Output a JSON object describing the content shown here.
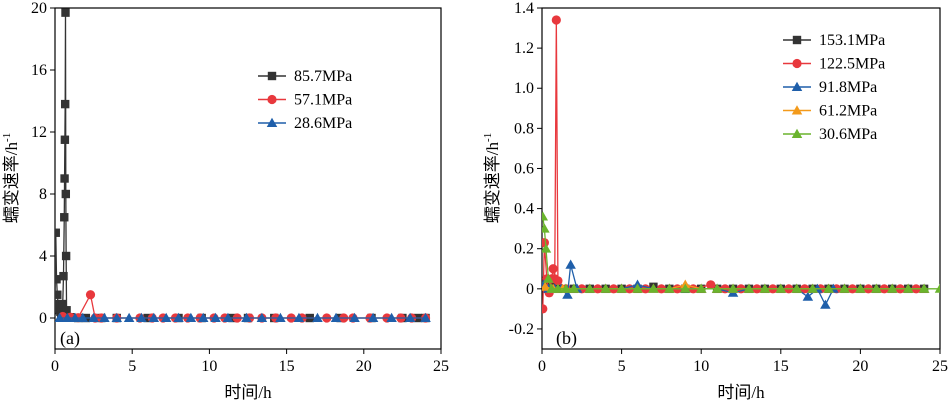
{
  "chart_data": [
    {
      "type": "line",
      "panel_label": "(a)",
      "xlabel": "时间/h",
      "ylabel_main": "蠕变速率/h",
      "ylabel_sup": "-1",
      "xlim": [
        0,
        25
      ],
      "ylim": [
        -2,
        20
      ],
      "xticks": [
        "0",
        "5",
        "10",
        "15",
        "20",
        "25"
      ],
      "yticks": [
        "0",
        "4",
        "8",
        "12",
        "16",
        "20"
      ],
      "legend_position": "top-right",
      "series": [
        {
          "name": "85.7MPa",
          "color": "#333333",
          "marker": "square",
          "points": [
            [
              0.0,
              0.7
            ],
            [
              0.05,
              5.5
            ],
            [
              0.1,
              2.5
            ],
            [
              0.15,
              1.5
            ],
            [
              0.2,
              0.9
            ],
            [
              0.25,
              0.6
            ],
            [
              0.3,
              0.5
            ],
            [
              0.35,
              0.4
            ],
            [
              0.4,
              0.3
            ],
            [
              0.45,
              0.5
            ],
            [
              0.5,
              0.9
            ],
            [
              0.55,
              2.7
            ],
            [
              0.6,
              6.5
            ],
            [
              0.62,
              9.0
            ],
            [
              0.64,
              11.5
            ],
            [
              0.66,
              13.8
            ],
            [
              0.68,
              19.7
            ],
            [
              0.7,
              8.0
            ],
            [
              0.72,
              4.0
            ],
            [
              0.75,
              0.5
            ],
            [
              1.0,
              0.05
            ],
            [
              1.5,
              0.0
            ],
            [
              2.0,
              0.0
            ],
            [
              3.0,
              0.0
            ],
            [
              4.0,
              0.0
            ],
            [
              6.0,
              0.0
            ],
            [
              8.0,
              0.0
            ],
            [
              9.5,
              0.0
            ],
            [
              11.5,
              0.0
            ],
            [
              12.5,
              0.0
            ],
            [
              14.2,
              0.0
            ],
            [
              16.5,
              0.0
            ],
            [
              18.5,
              0.0
            ],
            [
              20.5,
              0.0
            ],
            [
              22.5,
              0.0
            ],
            [
              23.5,
              0.0
            ],
            [
              24.0,
              0.0
            ]
          ]
        },
        {
          "name": "57.1MPa",
          "color": "#e8383d",
          "marker": "circle",
          "points": [
            [
              0.5,
              0.1
            ],
            [
              1.0,
              0.05
            ],
            [
              1.5,
              0.02
            ],
            [
              2.3,
              1.5
            ],
            [
              2.6,
              0.0
            ],
            [
              3.0,
              0.0
            ],
            [
              4.0,
              0.0
            ],
            [
              5.5,
              0.0
            ],
            [
              6.3,
              0.0
            ],
            [
              7.0,
              0.0
            ],
            [
              7.8,
              0.0
            ],
            [
              8.6,
              0.0
            ],
            [
              9.4,
              0.0
            ],
            [
              10.3,
              0.0
            ],
            [
              11.0,
              0.0
            ],
            [
              11.8,
              0.0
            ],
            [
              12.6,
              0.0
            ],
            [
              13.4,
              0.0
            ],
            [
              14.3,
              0.0
            ],
            [
              15.3,
              0.0
            ],
            [
              16.0,
              0.0
            ],
            [
              17.6,
              0.0
            ],
            [
              18.7,
              0.0
            ],
            [
              19.3,
              0.0
            ],
            [
              20.4,
              0.0
            ],
            [
              21.5,
              0.0
            ],
            [
              22.4,
              0.0
            ],
            [
              23.1,
              0.0
            ],
            [
              24.0,
              0.0
            ]
          ]
        },
        {
          "name": "28.6MPa",
          "color": "#1f5faa",
          "marker": "triangle",
          "points": [
            [
              0.3,
              0.0
            ],
            [
              0.8,
              0.0
            ],
            [
              1.3,
              0.0
            ],
            [
              1.8,
              0.0
            ],
            [
              2.5,
              0.0
            ],
            [
              3.2,
              0.0
            ],
            [
              4.0,
              0.0
            ],
            [
              4.8,
              0.0
            ],
            [
              5.6,
              0.0
            ],
            [
              6.4,
              0.0
            ],
            [
              7.2,
              0.0
            ],
            [
              8.0,
              0.0
            ],
            [
              8.8,
              0.0
            ],
            [
              9.6,
              0.0
            ],
            [
              10.4,
              0.0
            ],
            [
              11.2,
              0.0
            ],
            [
              12.4,
              0.0
            ],
            [
              13.4,
              0.0
            ],
            [
              14.6,
              0.0
            ],
            [
              15.8,
              0.0
            ],
            [
              17.0,
              0.0
            ],
            [
              18.2,
              0.0
            ],
            [
              19.4,
              0.0
            ],
            [
              20.6,
              0.0
            ],
            [
              21.8,
              0.0
            ],
            [
              23.0,
              0.0
            ],
            [
              24.0,
              0.0
            ]
          ]
        }
      ]
    },
    {
      "type": "line",
      "panel_label": "(b)",
      "xlabel": "时间/h",
      "ylabel_main": "蠕变速率/h",
      "ylabel_sup": "-1",
      "xlim": [
        0,
        25
      ],
      "ylim": [
        -0.3,
        1.4
      ],
      "xticks": [
        "0",
        "5",
        "10",
        "15",
        "20",
        "25"
      ],
      "yticks": [
        "-0.2",
        "0",
        "0.2",
        "0.4",
        "0.6",
        "0.8",
        "1.0",
        "1.2",
        "1.4"
      ],
      "legend_position": "top-right",
      "series": [
        {
          "name": "153.1MPa",
          "color": "#333333",
          "marker": "square",
          "points": [
            [
              0.1,
              0.02
            ],
            [
              0.3,
              0.0
            ],
            [
              0.6,
              0.01
            ],
            [
              1.0,
              0.0
            ],
            [
              2.0,
              0.0
            ],
            [
              3.0,
              0.0
            ],
            [
              4.0,
              0.0
            ],
            [
              5.0,
              0.0
            ],
            [
              6.0,
              0.0
            ],
            [
              7.0,
              0.01
            ],
            [
              8.0,
              0.0
            ],
            [
              9.0,
              0.0
            ],
            [
              10.0,
              0.0
            ],
            [
              11.0,
              0.0
            ],
            [
              12.0,
              0.0
            ],
            [
              13.0,
              0.0
            ],
            [
              14.0,
              0.0
            ],
            [
              15.0,
              0.0
            ],
            [
              16.0,
              0.0
            ],
            [
              17.0,
              0.0
            ],
            [
              18.0,
              0.0
            ],
            [
              19.0,
              0.0
            ],
            [
              20.0,
              0.0
            ],
            [
              21.0,
              0.0
            ],
            [
              22.0,
              0.0
            ],
            [
              23.0,
              0.0
            ],
            [
              24.0,
              0.0
            ]
          ]
        },
        {
          "name": "122.5MPa",
          "color": "#e8383d",
          "marker": "circle",
          "points": [
            [
              0.05,
              -0.1
            ],
            [
              0.15,
              0.23
            ],
            [
              0.3,
              0.05
            ],
            [
              0.45,
              -0.02
            ],
            [
              0.6,
              0.05
            ],
            [
              0.7,
              0.1
            ],
            [
              0.8,
              0.05
            ],
            [
              0.9,
              1.34
            ],
            [
              1.0,
              0.04
            ],
            [
              1.5,
              0.0
            ],
            [
              2.5,
              0.0
            ],
            [
              3.5,
              0.0
            ],
            [
              4.5,
              0.0
            ],
            [
              5.5,
              0.0
            ],
            [
              6.5,
              0.0
            ],
            [
              7.5,
              0.0
            ],
            [
              8.5,
              0.0
            ],
            [
              9.5,
              0.0
            ],
            [
              10.6,
              0.02
            ],
            [
              11.5,
              0.0
            ],
            [
              12.5,
              0.0
            ],
            [
              13.5,
              0.0
            ],
            [
              14.5,
              0.0
            ],
            [
              15.5,
              0.0
            ],
            [
              16.5,
              0.0
            ],
            [
              17.5,
              0.0
            ],
            [
              18.5,
              0.0
            ],
            [
              19.5,
              0.0
            ],
            [
              20.5,
              0.0
            ],
            [
              21.5,
              0.0
            ],
            [
              22.5,
              0.0
            ],
            [
              23.5,
              0.0
            ]
          ]
        },
        {
          "name": "91.8MPa",
          "color": "#1f5faa",
          "marker": "triangle",
          "points": [
            [
              0.1,
              0.02
            ],
            [
              0.4,
              0.0
            ],
            [
              0.8,
              0.0
            ],
            [
              1.2,
              0.0
            ],
            [
              1.6,
              -0.03
            ],
            [
              1.8,
              0.12
            ],
            [
              2.2,
              0.0
            ],
            [
              3.0,
              0.0
            ],
            [
              4.0,
              0.0
            ],
            [
              5.0,
              0.0
            ],
            [
              6.0,
              0.02
            ],
            [
              7.0,
              0.0
            ],
            [
              8.0,
              0.0
            ],
            [
              9.0,
              0.0
            ],
            [
              10.0,
              0.0
            ],
            [
              11.0,
              0.0
            ],
            [
              12.0,
              -0.02
            ],
            [
              13.0,
              0.0
            ],
            [
              14.0,
              0.0
            ],
            [
              15.0,
              0.0
            ],
            [
              16.0,
              0.0
            ],
            [
              16.7,
              -0.04
            ],
            [
              17.3,
              0.0
            ],
            [
              17.8,
              -0.08
            ],
            [
              18.3,
              0.0
            ],
            [
              19.0,
              0.0
            ],
            [
              20.0,
              0.0
            ],
            [
              21.0,
              0.0
            ],
            [
              22.0,
              0.0
            ],
            [
              23.0,
              0.0
            ],
            [
              24.0,
              0.0
            ]
          ]
        },
        {
          "name": "61.2MPa",
          "color": "#f39a1b",
          "marker": "triangle",
          "points": [
            [
              0.2,
              0.01
            ],
            [
              0.7,
              0.0
            ],
            [
              1.3,
              0.0
            ],
            [
              2.0,
              0.0
            ],
            [
              3.0,
              0.0
            ],
            [
              4.0,
              0.0
            ],
            [
              5.0,
              0.0
            ],
            [
              6.0,
              0.0
            ],
            [
              7.0,
              0.0
            ],
            [
              8.0,
              0.0
            ],
            [
              9.0,
              0.02
            ],
            [
              10.0,
              0.0
            ],
            [
              11.0,
              0.0
            ],
            [
              12.0,
              0.0
            ],
            [
              13.0,
              0.0
            ],
            [
              14.0,
              0.0
            ],
            [
              15.0,
              0.0
            ],
            [
              16.0,
              0.0
            ],
            [
              17.0,
              0.0
            ],
            [
              18.0,
              0.0
            ],
            [
              19.0,
              0.0
            ],
            [
              20.0,
              0.0
            ],
            [
              21.0,
              0.0
            ],
            [
              22.0,
              0.0
            ],
            [
              23.0,
              0.0
            ],
            [
              24.0,
              0.0
            ]
          ]
        },
        {
          "name": "30.6MPa",
          "color": "#6ab42d",
          "marker": "triangle",
          "points": [
            [
              0.05,
              0.36
            ],
            [
              0.15,
              0.3
            ],
            [
              0.25,
              0.2
            ],
            [
              0.4,
              0.05
            ],
            [
              0.6,
              0.0
            ],
            [
              1.0,
              0.0
            ],
            [
              1.5,
              0.0
            ],
            [
              2.0,
              0.0
            ],
            [
              3.0,
              0.0
            ],
            [
              4.0,
              0.0
            ],
            [
              5.0,
              0.0
            ],
            [
              6.0,
              0.0
            ],
            [
              7.0,
              0.0
            ],
            [
              8.0,
              0.0
            ],
            [
              9.0,
              0.0
            ],
            [
              10.0,
              0.0
            ],
            [
              11.0,
              0.0
            ],
            [
              12.0,
              0.0
            ],
            [
              13.0,
              0.0
            ],
            [
              14.0,
              0.0
            ],
            [
              15.0,
              0.0
            ],
            [
              16.0,
              0.0
            ],
            [
              17.0,
              0.0
            ],
            [
              18.0,
              0.0
            ],
            [
              19.0,
              0.0
            ],
            [
              20.0,
              0.0
            ],
            [
              21.0,
              0.0
            ],
            [
              22.0,
              0.0
            ],
            [
              23.0,
              0.0
            ],
            [
              24.0,
              0.0
            ],
            [
              25.0,
              0.0
            ]
          ]
        }
      ]
    }
  ]
}
